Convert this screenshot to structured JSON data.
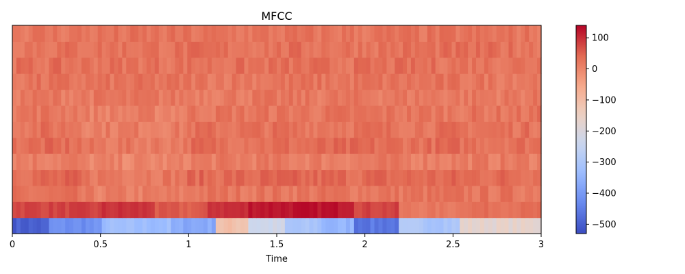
{
  "chart_data": {
    "type": "heatmap",
    "title": "MFCC",
    "xlabel": "Time",
    "ylabel": "",
    "xlim": [
      0,
      3
    ],
    "x_ticks": [
      {
        "value": 0,
        "label": "0"
      },
      {
        "value": 0.5,
        "label": "0.5"
      },
      {
        "value": 1,
        "label": "1"
      },
      {
        "value": 1.5,
        "label": "1.5"
      },
      {
        "value": 2,
        "label": "2"
      },
      {
        "value": 2.5,
        "label": "2.5"
      },
      {
        "value": 3,
        "label": "3"
      }
    ],
    "y_ticks": [],
    "n_coefficients": 13,
    "n_frames": 130,
    "colormap": "coolwarm",
    "colormap_stops": [
      "#3b4cc0",
      "#6788ee",
      "#9abbff",
      "#c9d7f0",
      "#edd1c2",
      "#f7a889",
      "#e26952",
      "#b40426"
    ],
    "colorbar": {
      "vmin": -530,
      "vmax": 140,
      "ticks": [
        {
          "value": 100,
          "label": "100"
        },
        {
          "value": 0,
          "label": "0"
        },
        {
          "value": -100,
          "label": "−100"
        },
        {
          "value": -200,
          "label": "−200"
        },
        {
          "value": -300,
          "label": "−300"
        },
        {
          "value": -400,
          "label": "−400"
        },
        {
          "value": -500,
          "label": "−500"
        }
      ]
    },
    "coefficient_profile_note_free": true,
    "coef0_segments": [
      {
        "t": [
          0.0,
          0.2
        ],
        "value": -500
      },
      {
        "t": [
          0.2,
          0.5
        ],
        "value": -420
      },
      {
        "t": [
          0.5,
          0.9
        ],
        "value": -330
      },
      {
        "t": [
          0.9,
          1.15
        ],
        "value": -370
      },
      {
        "t": [
          1.15,
          1.35
        ],
        "value": -110
      },
      {
        "t": [
          1.35,
          1.55
        ],
        "value": -230
      },
      {
        "t": [
          1.55,
          1.75
        ],
        "value": -310
      },
      {
        "t": [
          1.75,
          1.95
        ],
        "value": -350
      },
      {
        "t": [
          1.95,
          2.2
        ],
        "value": -460
      },
      {
        "t": [
          2.2,
          2.55
        ],
        "value": -300
      },
      {
        "t": [
          2.55,
          3.0
        ],
        "value": -170
      }
    ],
    "coef1_segments": [
      {
        "t": [
          0.0,
          0.5
        ],
        "value": 80
      },
      {
        "t": [
          0.5,
          0.8
        ],
        "value": 95
      },
      {
        "t": [
          0.8,
          1.1
        ],
        "value": 55
      },
      {
        "t": [
          1.1,
          1.35
        ],
        "value": 100
      },
      {
        "t": [
          1.35,
          1.95
        ],
        "value": 125
      },
      {
        "t": [
          1.95,
          2.2
        ],
        "value": 80
      },
      {
        "t": [
          2.2,
          2.55
        ],
        "value": 20
      },
      {
        "t": [
          2.55,
          3.0
        ],
        "value": 35
      }
    ],
    "upper_coefficients_mean": [
      25,
      40,
      15,
      35,
      30,
      25,
      20,
      25,
      30,
      30,
      25
    ]
  }
}
